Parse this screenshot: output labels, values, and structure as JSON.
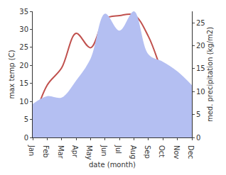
{
  "chart_data": {
    "type": "line",
    "x_label": "date (month)",
    "y_label": "max temp (C)",
    "y2_label": "med. precipitation (kg/m2)",
    "categories": [
      "Jan",
      "Feb",
      "Mar",
      "Apr",
      "May",
      "Jun",
      "Jul",
      "Aug",
      "Sep",
      "Oct",
      "Nov",
      "Dec"
    ],
    "series": [
      {
        "name": "med. precipitation",
        "type": "area",
        "axis": "y2",
        "color": "#b4bff2",
        "values": [
          7.3,
          9,
          8.7,
          12.4,
          17.2,
          27,
          23.3,
          27.5,
          18.1,
          16.5,
          14.4,
          11.4
        ]
      },
      {
        "name": "max temp",
        "type": "line",
        "axis": "y",
        "color": "#c0504d",
        "values": [
          3.9,
          14.5,
          19.3,
          28.9,
          24.9,
          32.9,
          33.8,
          34,
          28,
          17.5,
          8.2,
          6.5
        ]
      }
    ],
    "ylim": [
      0,
      35
    ],
    "yticks": [
      0,
      5,
      10,
      15,
      20,
      25,
      30,
      35
    ],
    "y2lim": [
      0,
      27.5
    ],
    "y2ticks": [
      0,
      5,
      10,
      15,
      20,
      25
    ],
    "grid": false
  }
}
